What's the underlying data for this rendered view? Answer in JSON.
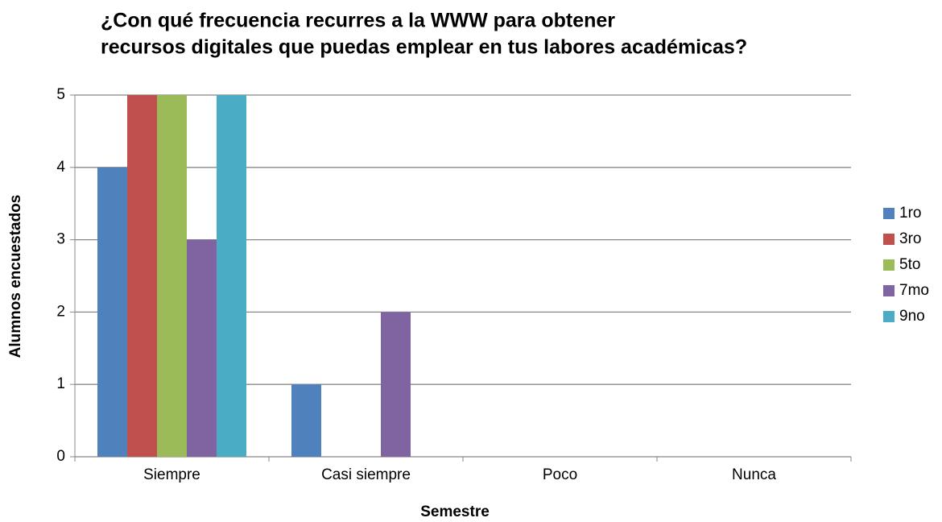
{
  "chart_data": {
    "type": "bar",
    "title": [
      "¿Con qué frecuencia recurres a la WWW para obtener",
      "recursos digitales que puedas emplear en tus labores académicas?"
    ],
    "x_label": "Semestre",
    "y_label": "Alumnos encuestados",
    "categories": [
      "Siempre",
      "Casi siempre",
      "Poco",
      "Nunca"
    ],
    "series": [
      {
        "name": "1ro",
        "color": "#4f81bd",
        "values": [
          4,
          1,
          0,
          0
        ]
      },
      {
        "name": "3ro",
        "color": "#c0504d",
        "values": [
          5,
          0,
          0,
          0
        ]
      },
      {
        "name": "5to",
        "color": "#9bbb59",
        "values": [
          5,
          0,
          0,
          0
        ]
      },
      {
        "name": "7mo",
        "color": "#8064a2",
        "values": [
          3,
          2,
          0,
          0
        ]
      },
      {
        "name": "9no",
        "color": "#4bacc6",
        "values": [
          5,
          0,
          0,
          0
        ]
      }
    ],
    "ylim": [
      0,
      5
    ],
    "yticks": [
      0,
      1,
      2,
      3,
      4,
      5
    ],
    "grid": true,
    "legend": "right"
  }
}
